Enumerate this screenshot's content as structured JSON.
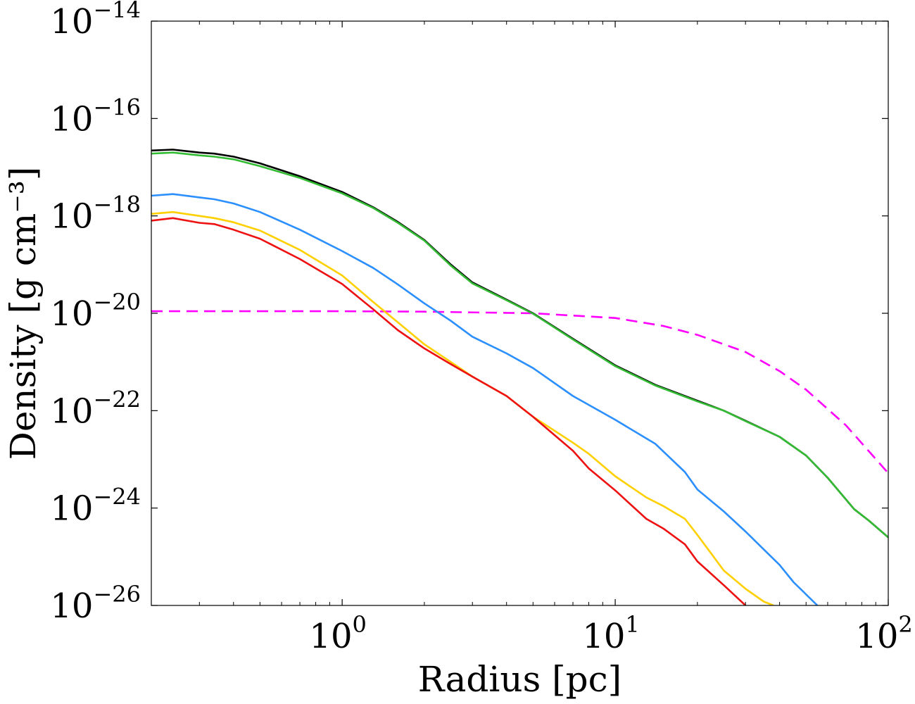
{
  "chart_data": {
    "type": "line",
    "title": "",
    "xlabel": "Radius [pc]",
    "ylabel": "Density [g cm⁻³]",
    "xscale": "log",
    "yscale": "log",
    "xlim": [
      0.2,
      100
    ],
    "ylim": [
      1e-26,
      1e-14
    ],
    "grid": false,
    "x_ticks": [
      {
        "value": 1,
        "base": "10",
        "exp": "0"
      },
      {
        "value": 10,
        "base": "10",
        "exp": "1"
      },
      {
        "value": 100,
        "base": "10",
        "exp": "2"
      }
    ],
    "y_ticks": [
      {
        "value": 1e-26,
        "base": "10",
        "exp": "−26"
      },
      {
        "value": 1e-24,
        "base": "10",
        "exp": "−24"
      },
      {
        "value": 1e-22,
        "base": "10",
        "exp": "−22"
      },
      {
        "value": 1e-20,
        "base": "10",
        "exp": "−20"
      },
      {
        "value": 1e-18,
        "base": "10",
        "exp": "−18"
      },
      {
        "value": 1e-16,
        "base": "10",
        "exp": "−16"
      },
      {
        "value": 1e-14,
        "base": "10",
        "exp": "−14"
      }
    ],
    "series": [
      {
        "color": "#ff00ff",
        "dash": "dashed",
        "points": [
          [
            0.2,
            1.1e-20
          ],
          [
            0.5,
            1.1e-20
          ],
          [
            1,
            1.1e-20
          ],
          [
            2,
            1.08e-20
          ],
          [
            5,
            1e-20
          ],
          [
            10,
            8e-21
          ],
          [
            15,
            5.5e-21
          ],
          [
            20,
            3.6e-21
          ],
          [
            30,
            1.6e-21
          ],
          [
            40,
            6.5e-22
          ],
          [
            50,
            2.7e-22
          ],
          [
            70,
            5e-23
          ],
          [
            100,
            5.2e-24
          ]
        ]
      },
      {
        "color": "#000000",
        "dash": "solid",
        "points": [
          [
            0.2,
            2.2e-17
          ],
          [
            0.24,
            2.3e-17
          ],
          [
            0.3,
            2e-17
          ],
          [
            0.34,
            1.9e-17
          ],
          [
            0.4,
            1.65e-17
          ],
          [
            0.5,
            1.2e-17
          ],
          [
            0.7,
            6.5e-18
          ],
          [
            1.0,
            3.1e-18
          ],
          [
            1.3,
            1.5e-18
          ],
          [
            1.6,
            7.5e-19
          ],
          [
            2.0,
            3.2e-19
          ],
          [
            2.5,
            1e-19
          ],
          [
            3.0,
            4.3e-20
          ],
          [
            4.0,
            1.9e-20
          ],
          [
            5.0,
            1e-20
          ],
          [
            7.0,
            3e-21
          ],
          [
            10,
            8.5e-22
          ],
          [
            14,
            3.4e-22
          ],
          [
            20,
            1.6e-22
          ],
          [
            25,
            1e-22
          ],
          [
            30,
            6.2e-23
          ],
          [
            40,
            2.9e-23
          ],
          [
            50,
            1.2e-23
          ],
          [
            60,
            4.2e-24
          ],
          [
            75,
            9.5e-25
          ],
          [
            85,
            5.5e-25
          ],
          [
            100,
            2.5e-25
          ]
        ]
      },
      {
        "color": "#33bb33",
        "dash": "solid",
        "points": [
          [
            0.2,
            1.9e-17
          ],
          [
            0.24,
            2e-17
          ],
          [
            0.3,
            1.75e-17
          ],
          [
            0.34,
            1.65e-17
          ],
          [
            0.4,
            1.45e-17
          ],
          [
            0.5,
            1.05e-17
          ],
          [
            0.7,
            6e-18
          ],
          [
            1.0,
            2.9e-18
          ],
          [
            1.3,
            1.45e-18
          ],
          [
            1.6,
            7.2e-19
          ],
          [
            2.0,
            3.1e-19
          ],
          [
            2.5,
            9.5e-20
          ],
          [
            3.0,
            4.1e-20
          ],
          [
            4.0,
            1.85e-20
          ],
          [
            5.0,
            9.8e-21
          ],
          [
            7.0,
            2.9e-21
          ],
          [
            10,
            8.2e-22
          ],
          [
            14,
            3.3e-22
          ],
          [
            20,
            1.55e-22
          ],
          [
            25,
            1e-22
          ],
          [
            30,
            6.1e-23
          ],
          [
            40,
            2.9e-23
          ],
          [
            50,
            1.2e-23
          ],
          [
            60,
            4.2e-24
          ],
          [
            75,
            9.5e-25
          ],
          [
            85,
            5.5e-25
          ],
          [
            100,
            2.5e-25
          ]
        ]
      },
      {
        "color": "#2b8fff",
        "dash": "solid",
        "points": [
          [
            0.2,
            2.6e-18
          ],
          [
            0.24,
            2.8e-18
          ],
          [
            0.3,
            2.4e-18
          ],
          [
            0.34,
            2.2e-18
          ],
          [
            0.4,
            1.8e-18
          ],
          [
            0.5,
            1.2e-18
          ],
          [
            0.7,
            5.2e-19
          ],
          [
            1.0,
            1.9e-19
          ],
          [
            1.3,
            8.5e-20
          ],
          [
            1.6,
            3.9e-20
          ],
          [
            2.0,
            1.6e-20
          ],
          [
            2.5,
            7e-21
          ],
          [
            3.0,
            3.3e-21
          ],
          [
            4.0,
            1.5e-21
          ],
          [
            5.0,
            7.5e-22
          ],
          [
            7.0,
            2e-22
          ],
          [
            10,
            6.5e-23
          ],
          [
            14,
            2.1e-23
          ],
          [
            18,
            5.5e-24
          ],
          [
            20,
            2.4e-24
          ],
          [
            25,
            8.5e-25
          ],
          [
            30,
            3.3e-25
          ],
          [
            40,
            6.8e-26
          ],
          [
            45,
            3e-26
          ],
          [
            55,
            1e-26
          ]
        ]
      },
      {
        "color": "#ffd000",
        "dash": "solid",
        "points": [
          [
            0.2,
            1.1e-18
          ],
          [
            0.24,
            1.2e-18
          ],
          [
            0.3,
            1e-18
          ],
          [
            0.34,
            9e-19
          ],
          [
            0.4,
            7.4e-19
          ],
          [
            0.5,
            5e-19
          ],
          [
            0.7,
            2e-19
          ],
          [
            1.0,
            6e-20
          ],
          [
            1.3,
            1.7e-20
          ],
          [
            1.6,
            6.5e-21
          ],
          [
            2.0,
            2.3e-21
          ],
          [
            2.5,
            1e-21
          ],
          [
            3.0,
            5e-22
          ],
          [
            4.0,
            2e-22
          ],
          [
            5.0,
            7.5e-23
          ],
          [
            7.0,
            2.2e-23
          ],
          [
            8.0,
            1.3e-23
          ],
          [
            10,
            4.5e-24
          ],
          [
            13,
            1.65e-24
          ],
          [
            15,
            1.1e-24
          ],
          [
            18,
            6e-25
          ],
          [
            20,
            2.8e-25
          ],
          [
            25,
            5.2e-26
          ],
          [
            30,
            2.2e-26
          ],
          [
            35,
            1.2e-26
          ],
          [
            38,
            1e-26
          ]
        ]
      },
      {
        "color": "#ee1111",
        "dash": "solid",
        "points": [
          [
            0.2,
            8e-19
          ],
          [
            0.24,
            9e-19
          ],
          [
            0.3,
            7.2e-19
          ],
          [
            0.34,
            6.8e-19
          ],
          [
            0.4,
            5.2e-19
          ],
          [
            0.5,
            3.4e-19
          ],
          [
            0.7,
            1.3e-19
          ],
          [
            1.0,
            4e-20
          ],
          [
            1.3,
            1.2e-20
          ],
          [
            1.6,
            4.5e-21
          ],
          [
            2.0,
            1.9e-21
          ],
          [
            2.5,
            9e-22
          ],
          [
            3.0,
            5e-22
          ],
          [
            4.0,
            2e-22
          ],
          [
            5.0,
            7.5e-23
          ],
          [
            7.0,
            1.5e-23
          ],
          [
            8.0,
            6.5e-24
          ],
          [
            10,
            2.3e-24
          ],
          [
            13,
            6e-25
          ],
          [
            15,
            3.8e-25
          ],
          [
            18,
            1.8e-25
          ],
          [
            20,
            8e-26
          ],
          [
            25,
            2.6e-26
          ],
          [
            30,
            1e-26
          ]
        ]
      }
    ]
  }
}
